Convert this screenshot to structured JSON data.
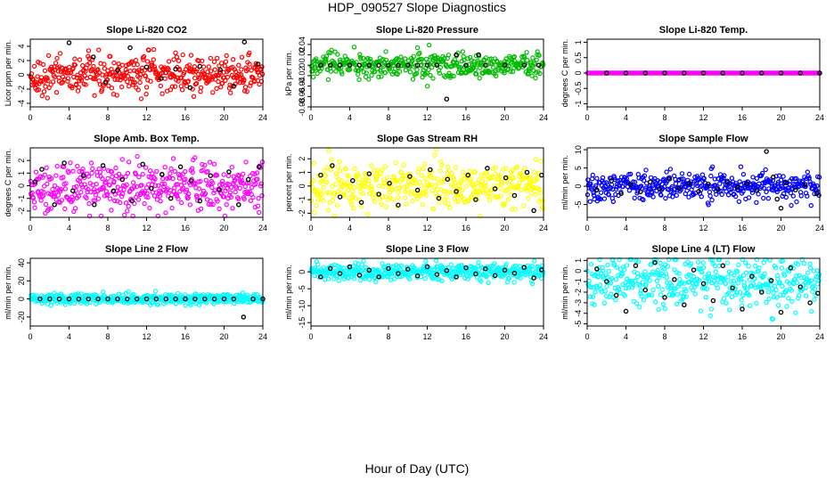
{
  "figure": {
    "title": "HDP_090527  Slope Diagnostics",
    "xlabel": "Hour of Day (UTC)"
  },
  "colors": {
    "highlight": "#000000",
    "axis": "#000000"
  },
  "chart_data": [
    {
      "type": "scatter",
      "title": "Slope Li-820 CO2",
      "ylabel": "Licor ppm per min.",
      "color": "#ff0000",
      "xlim": [
        0,
        24
      ],
      "xticks": [
        0,
        4,
        8,
        12,
        16,
        20,
        24
      ],
      "ylim": [
        -4.5,
        5
      ],
      "yticks": [
        -4,
        -2,
        0,
        2,
        4
      ],
      "noise_sd": 1.3,
      "mean": 0,
      "n_points": 420,
      "highlight_points": [
        [
          4.0,
          4.5
        ],
        [
          6.5,
          2.5
        ],
        [
          7.8,
          -1.0
        ],
        [
          9.0,
          0.6
        ],
        [
          10.3,
          3.8
        ],
        [
          12.0,
          1.1
        ],
        [
          13.5,
          -0.5
        ],
        [
          15.0,
          0.8
        ],
        [
          16.5,
          -1.8
        ],
        [
          17.5,
          1.2
        ],
        [
          19.6,
          0.7
        ],
        [
          21.0,
          -1.6
        ],
        [
          22.1,
          4.6
        ],
        [
          23.5,
          1.5
        ]
      ]
    },
    {
      "type": "scatter",
      "title": "Slope Li-820 Pressure",
      "ylabel": "kPa per min.",
      "color": "#00bb00",
      "xlim": [
        0,
        24
      ],
      "xticks": [
        0,
        4,
        8,
        12,
        16,
        20,
        24
      ],
      "ylim": [
        -0.08,
        0.05
      ],
      "yticks": [
        -0.08,
        -0.06,
        -0.04,
        -0.02,
        0,
        0.02,
        0.04
      ],
      "noise_sd": 0.012,
      "mean": 0,
      "n_points": 420,
      "highlight_points": [
        [
          1,
          0
        ],
        [
          2,
          0
        ],
        [
          3,
          0
        ],
        [
          4,
          0
        ],
        [
          5,
          0
        ],
        [
          6,
          0
        ],
        [
          7,
          0
        ],
        [
          8,
          0
        ],
        [
          9,
          0
        ],
        [
          10,
          0
        ],
        [
          11,
          0
        ],
        [
          12,
          0
        ],
        [
          13,
          0
        ],
        [
          14,
          -0.065
        ],
        [
          15,
          0.02
        ],
        [
          16,
          0
        ],
        [
          17.3,
          0.02
        ],
        [
          18,
          0
        ],
        [
          20,
          0
        ],
        [
          22,
          0
        ],
        [
          23.5,
          0
        ]
      ]
    },
    {
      "type": "scatter",
      "title": "Slope Li-820 Temp.",
      "ylabel": "degrees C per min.",
      "color": "#ff00ff",
      "xlim": [
        0,
        24
      ],
      "xticks": [
        0,
        4,
        8,
        12,
        16,
        20,
        24
      ],
      "ylim": [
        -1.1,
        1.1
      ],
      "yticks": [
        -1,
        -0.5,
        0,
        0.5,
        1
      ],
      "noise_sd": 0.0,
      "mean": 0,
      "n_points": 240,
      "highlight_points": [
        [
          2,
          0
        ],
        [
          4,
          0
        ],
        [
          6,
          0
        ],
        [
          8,
          0
        ],
        [
          10,
          0
        ],
        [
          12,
          0
        ],
        [
          14,
          0
        ],
        [
          16,
          0
        ],
        [
          18,
          0
        ],
        [
          20,
          0
        ],
        [
          22,
          0
        ],
        [
          24,
          0
        ]
      ]
    },
    {
      "type": "scatter",
      "title": "Slope Amb. Box Temp.",
      "ylabel": "degrees C per min.",
      "color": "#ff00ff",
      "xlim": [
        0,
        24
      ],
      "xticks": [
        0,
        4,
        8,
        12,
        16,
        20,
        24
      ],
      "ylim": [
        -2.5,
        3
      ],
      "yticks": [
        -2,
        -1,
        0,
        1,
        2
      ],
      "noise_sd": 0.95,
      "mean": 0,
      "n_points": 420,
      "highlight_points": [
        [
          0.5,
          0.3
        ],
        [
          1.2,
          1.3
        ],
        [
          2.5,
          -1.5
        ],
        [
          3.5,
          1.8
        ],
        [
          4.4,
          -0.4
        ],
        [
          5.5,
          0.8
        ],
        [
          6.6,
          -1.5
        ],
        [
          7.5,
          1.6
        ],
        [
          8.6,
          -0.4
        ],
        [
          9.5,
          0.5
        ],
        [
          10.5,
          -1.2
        ],
        [
          11.6,
          1.7
        ],
        [
          12.5,
          -0.2
        ],
        [
          13.6,
          0.9
        ],
        [
          14.5,
          -1.0
        ],
        [
          15.5,
          1.5
        ],
        [
          16.6,
          0.4
        ],
        [
          17.5,
          -1.2
        ],
        [
          18.6,
          0.8
        ],
        [
          19.5,
          -0.3
        ],
        [
          20.5,
          1.1
        ],
        [
          21.5,
          -1.5
        ],
        [
          22.5,
          0.5
        ],
        [
          23.6,
          1.5
        ]
      ]
    },
    {
      "type": "scatter",
      "title": "Slope Gas Stream RH",
      "ylabel": "percent per min.",
      "color": "#ffff00",
      "xlim": [
        0,
        24
      ],
      "xticks": [
        0,
        4,
        8,
        12,
        16,
        20,
        24
      ],
      "ylim": [
        -2.3,
        2.8
      ],
      "yticks": [
        -2,
        -1,
        0,
        1,
        2
      ],
      "noise_sd": 0.9,
      "mean": 0,
      "n_points": 420,
      "highlight_points": [
        [
          1.0,
          0.8
        ],
        [
          2.2,
          1.5
        ],
        [
          3.0,
          -0.8
        ],
        [
          4.3,
          0.4
        ],
        [
          5.2,
          -1.2
        ],
        [
          6.0,
          0.9
        ],
        [
          7.0,
          -0.6
        ],
        [
          8.1,
          0.2
        ],
        [
          9.0,
          -1.4
        ],
        [
          10.2,
          0.7
        ],
        [
          11.0,
          -0.3
        ],
        [
          12.3,
          1.2
        ],
        [
          13.2,
          -0.9
        ],
        [
          14.1,
          0.5
        ],
        [
          15.0,
          -0.4
        ],
        [
          16.2,
          0.8
        ],
        [
          17.0,
          -1.0
        ],
        [
          18.2,
          1.3
        ],
        [
          19.0,
          -0.2
        ],
        [
          20.1,
          0.6
        ],
        [
          21.0,
          -0.7
        ],
        [
          22.3,
          1.0
        ],
        [
          23.0,
          -1.8
        ],
        [
          23.8,
          0.8
        ]
      ]
    },
    {
      "type": "scatter",
      "title": "Slope Sample Flow",
      "ylabel": "ml/min per min.",
      "color": "#0000ff",
      "xlim": [
        0,
        24
      ],
      "xticks": [
        0,
        4,
        8,
        12,
        16,
        20,
        24
      ],
      "ylim": [
        -8.5,
        10.5
      ],
      "yticks": [
        -5,
        0,
        5,
        10
      ],
      "noise_sd": 1.8,
      "mean": 0,
      "n_points": 420,
      "highlight_points": [
        [
          1.0,
          -1.0
        ],
        [
          2.5,
          1.5
        ],
        [
          3.5,
          -2.0
        ],
        [
          4.5,
          0.5
        ],
        [
          5.5,
          -1.5
        ],
        [
          6.5,
          1.2
        ],
        [
          7.5,
          -0.8
        ],
        [
          8.5,
          2.0
        ],
        [
          9.5,
          -0.5
        ],
        [
          10.5,
          0.8
        ],
        [
          11.5,
          -1.4
        ],
        [
          12.5,
          0.6
        ],
        [
          13.5,
          -0.9
        ],
        [
          14.5,
          1.1
        ],
        [
          15.5,
          -0.3
        ],
        [
          16.5,
          0.7
        ],
        [
          17.5,
          -1.2
        ],
        [
          18.5,
          9.5
        ],
        [
          19.2,
          2.5
        ],
        [
          19.6,
          -3.5
        ],
        [
          20.0,
          -6.0
        ],
        [
          20.5,
          1.0
        ],
        [
          21.5,
          -1.0
        ],
        [
          22.5,
          0.5
        ],
        [
          23.7,
          -2.0
        ]
      ]
    },
    {
      "type": "scatter",
      "title": "Slope Line 2 Flow",
      "ylabel": "ml/min per min.",
      "color": "#00ffff",
      "xlim": [
        0,
        24
      ],
      "xticks": [
        0,
        4,
        8,
        12,
        16,
        20,
        24
      ],
      "ylim": [
        -30,
        45
      ],
      "yticks": [
        -20,
        0,
        20,
        40
      ],
      "noise_sd": 3.0,
      "mean": 0,
      "n_points": 420,
      "highlight_points": [
        [
          1,
          0
        ],
        [
          2,
          0
        ],
        [
          3,
          0
        ],
        [
          4,
          0
        ],
        [
          5,
          0
        ],
        [
          6,
          0
        ],
        [
          7,
          0
        ],
        [
          8,
          0
        ],
        [
          9,
          0
        ],
        [
          10,
          0
        ],
        [
          11,
          0
        ],
        [
          12,
          0
        ],
        [
          13,
          0
        ],
        [
          14,
          0
        ],
        [
          15,
          0
        ],
        [
          16,
          0
        ],
        [
          17,
          0
        ],
        [
          18,
          0
        ],
        [
          19,
          0
        ],
        [
          20,
          0
        ],
        [
          21,
          0
        ],
        [
          22,
          -20
        ],
        [
          23,
          0
        ],
        [
          24,
          0
        ]
      ]
    },
    {
      "type": "scatter",
      "title": "Slope Line 3 Flow",
      "ylabel": "ml/min per min.",
      "color": "#00ffff",
      "xlim": [
        0,
        24
      ],
      "xticks": [
        0,
        4,
        8,
        12,
        16,
        20,
        24
      ],
      "ylim": [
        -16,
        4
      ],
      "yticks": [
        -15,
        -10,
        -5,
        0
      ],
      "noise_sd": 1.2,
      "mean": 0,
      "n_points": 420,
      "highlight_points": [
        [
          1,
          -1.5
        ],
        [
          2,
          1
        ],
        [
          3,
          -0.5
        ],
        [
          4,
          1.5
        ],
        [
          5,
          -1
        ],
        [
          6,
          0.5
        ],
        [
          7,
          -1.5
        ],
        [
          8,
          1
        ],
        [
          9,
          -0.5
        ],
        [
          10,
          0.8
        ],
        [
          11,
          -1.2
        ],
        [
          12,
          1.5
        ],
        [
          13,
          -0.8
        ],
        [
          14,
          0.4
        ],
        [
          15,
          -1.5
        ],
        [
          16,
          1.2
        ],
        [
          17,
          -0.6
        ],
        [
          18,
          0.9
        ],
        [
          19,
          -1.1
        ],
        [
          20,
          0.5
        ],
        [
          21,
          -0.4
        ],
        [
          22,
          1.3
        ],
        [
          23,
          -1.8
        ],
        [
          23.8,
          0.6
        ]
      ]
    },
    {
      "type": "scatter",
      "title": "Slope Line 4 (LT) Flow",
      "ylabel": "ml/min per min.",
      "color": "#00ffff",
      "xlim": [
        0,
        24
      ],
      "xticks": [
        0,
        4,
        8,
        12,
        16,
        20,
        24
      ],
      "ylim": [
        -5.2,
        1.2
      ],
      "yticks": [
        -5,
        -4,
        -3,
        -2,
        -1,
        0,
        1
      ],
      "noise_sd": 1.2,
      "mean": -1,
      "n_points": 420,
      "highlight_points": [
        [
          1,
          0.2
        ],
        [
          2,
          -1
        ],
        [
          3,
          -2.3
        ],
        [
          4,
          -3.8
        ],
        [
          5,
          0.5
        ],
        [
          6,
          -1.8
        ],
        [
          7,
          0.8
        ],
        [
          8,
          -2.5
        ],
        [
          9,
          -0.8
        ],
        [
          10,
          -3.2
        ],
        [
          11,
          0.1
        ],
        [
          12,
          -1.2
        ],
        [
          13,
          -2.8
        ],
        [
          14,
          0.5
        ],
        [
          15,
          -1.6
        ],
        [
          16,
          -3.6
        ],
        [
          17,
          -0.5
        ],
        [
          18,
          -2
        ],
        [
          19,
          -0.9
        ],
        [
          20,
          -3.9
        ],
        [
          21,
          0.3
        ],
        [
          22,
          -1.5
        ],
        [
          23,
          -3
        ],
        [
          23.8,
          -2.1
        ]
      ]
    }
  ]
}
